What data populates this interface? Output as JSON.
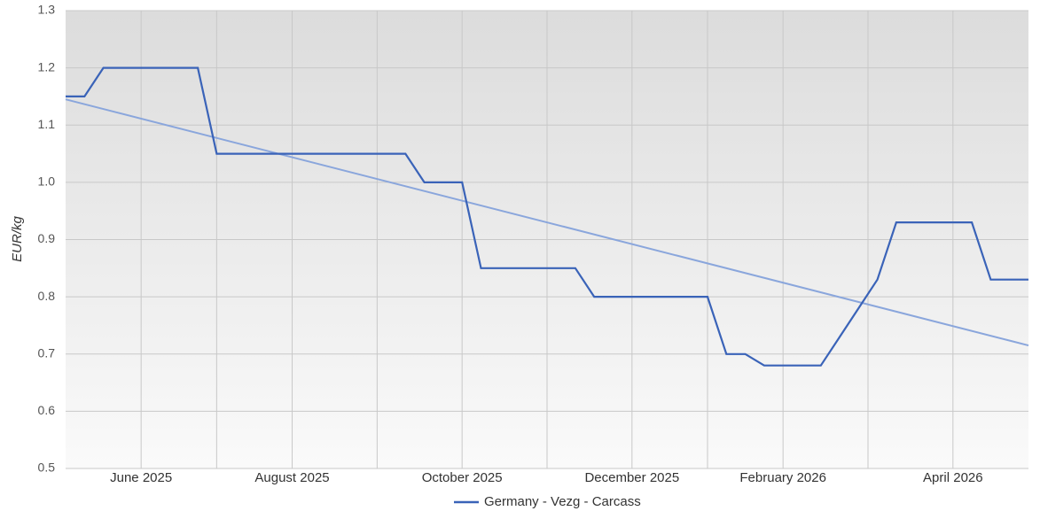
{
  "chart_data": {
    "type": "line",
    "y_label": "EUR/kg",
    "categories": [
      null,
      null,
      null,
      null,
      "June 2025",
      null,
      null,
      null,
      null,
      null,
      null,
      null,
      "August 2025",
      null,
      null,
      null,
      null,
      null,
      null,
      null,
      null,
      "October 2025",
      null,
      null,
      null,
      null,
      null,
      null,
      null,
      null,
      "December 2025",
      null,
      null,
      null,
      null,
      null,
      null,
      null,
      "February 2026",
      null,
      null,
      null,
      null,
      null,
      null,
      null,
      null,
      "April 2026",
      null,
      null,
      null,
      null
    ],
    "series": [
      {
        "name": "Germany - Vezg - Carcass",
        "color": "#3a63b8",
        "values": [
          1.15,
          1.15,
          1.2,
          1.2,
          1.2,
          1.2,
          1.2,
          1.2,
          1.05,
          1.05,
          1.05,
          1.05,
          1.05,
          1.05,
          1.05,
          1.05,
          1.05,
          1.05,
          1.05,
          1.0,
          1.0,
          1.0,
          0.85,
          0.85,
          0.85,
          0.85,
          0.85,
          0.85,
          0.8,
          0.8,
          0.8,
          0.8,
          0.8,
          0.8,
          0.8,
          0.7,
          0.7,
          0.68,
          0.68,
          0.68,
          0.68,
          0.73,
          0.78,
          0.83,
          0.93,
          0.93,
          0.93,
          0.93,
          0.93,
          0.83,
          0.83,
          0.83
        ]
      }
    ],
    "trendline": {
      "color": "#8aa6dc",
      "start": 1.145,
      "end": 0.715
    },
    "ylim": [
      0.5,
      1.3
    ],
    "yticks": [
      0.5,
      0.6,
      0.7,
      0.8,
      0.9,
      {
        "value": 1,
        "label": "1.0"
      },
      1.1,
      1.2,
      1.3
    ],
    "grid": true,
    "legend": "bottom"
  }
}
